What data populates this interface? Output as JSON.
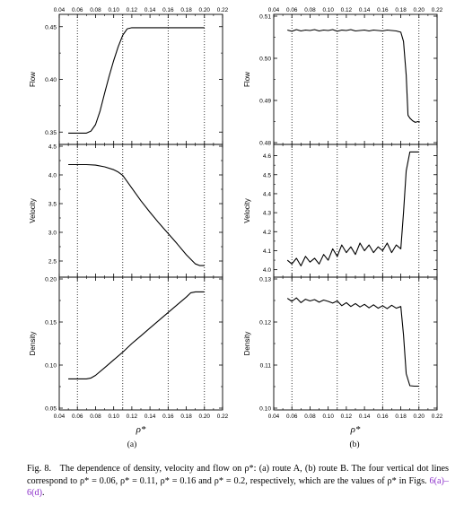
{
  "figure_label": "Fig. 8.",
  "caption_text": "The dependence of density, velocity and flow on ρ*: (a) route A, (b) route B. The four vertical dot lines correspond to ρ* = 0.06, ρ* = 0.11, ρ* = 0.16 and ρ* = 0.2, respectively, which are the values of ρ* in Figs.",
  "caption_link": "6(a)–6(d)",
  "caption_end": ".",
  "colors": {
    "line": "#000000",
    "link": "#8b2fc9"
  },
  "chart_data": [
    {
      "panel": "(a)",
      "type": "line",
      "xlabel": "ρ*",
      "xlim": [
        0.04,
        0.22
      ],
      "xticks": [
        0.04,
        0.06,
        0.08,
        0.1,
        0.12,
        0.14,
        0.16,
        0.18,
        0.2,
        0.22
      ],
      "vlines": [
        0.06,
        0.11,
        0.16,
        0.2
      ],
      "subplots": [
        {
          "ylabel": "Flow",
          "ylim": [
            0.34,
            0.46
          ],
          "yticks": [
            0.35,
            0.4,
            0.45
          ],
          "ytick_labels": [
            "0.35",
            "0.40",
            "0.45"
          ],
          "series": [
            {
              "x": [
                0.05,
                0.06,
                0.07,
                0.075,
                0.08,
                0.085,
                0.09,
                0.095,
                0.1,
                0.105,
                0.11,
                0.115,
                0.12,
                0.13,
                0.14,
                0.16,
                0.18,
                0.2
              ],
              "y": [
                0.349,
                0.349,
                0.349,
                0.351,
                0.357,
                0.37,
                0.387,
                0.403,
                0.418,
                0.431,
                0.442,
                0.448,
                0.449,
                0.449,
                0.449,
                0.449,
                0.449,
                0.449
              ]
            }
          ]
        },
        {
          "ylabel": "Velocity",
          "ylim": [
            2.25,
            4.5
          ],
          "yticks": [
            2.5,
            3.0,
            3.5,
            4.0,
            4.5
          ],
          "ytick_labels": [
            "2.5",
            "3.0",
            "3.5",
            "4.0",
            "4.5"
          ],
          "series": [
            {
              "x": [
                0.05,
                0.06,
                0.07,
                0.08,
                0.09,
                0.1,
                0.105,
                0.11,
                0.12,
                0.13,
                0.14,
                0.15,
                0.16,
                0.17,
                0.18,
                0.19,
                0.195,
                0.2
              ],
              "y": [
                4.18,
                4.18,
                4.18,
                4.17,
                4.14,
                4.09,
                4.05,
                3.99,
                3.77,
                3.55,
                3.35,
                3.16,
                2.98,
                2.8,
                2.61,
                2.45,
                2.42,
                2.42
              ]
            }
          ]
        },
        {
          "ylabel": "Density",
          "ylim": [
            0.05,
            0.2
          ],
          "yticks": [
            0.05,
            0.1,
            0.15,
            0.2
          ],
          "ytick_labels": [
            "0.05",
            "0.10",
            "0.15",
            "0.20"
          ],
          "series": [
            {
              "x": [
                0.05,
                0.06,
                0.07,
                0.075,
                0.08,
                0.09,
                0.1,
                0.11,
                0.12,
                0.13,
                0.14,
                0.15,
                0.16,
                0.17,
                0.18,
                0.185,
                0.19,
                0.2
              ],
              "y": [
                0.084,
                0.084,
                0.084,
                0.085,
                0.088,
                0.097,
                0.106,
                0.115,
                0.125,
                0.134,
                0.143,
                0.152,
                0.161,
                0.17,
                0.179,
                0.184,
                0.185,
                0.185
              ]
            }
          ]
        }
      ]
    },
    {
      "panel": "(b)",
      "type": "line",
      "xlabel": "ρ*",
      "xlim": [
        0.04,
        0.22
      ],
      "xticks": [
        0.04,
        0.06,
        0.08,
        0.1,
        0.12,
        0.14,
        0.16,
        0.18,
        0.2,
        0.22
      ],
      "vlines": [
        0.06,
        0.11,
        0.16,
        0.2
      ],
      "subplots": [
        {
          "ylabel": "Flow",
          "ylim": [
            0.48,
            0.51
          ],
          "yticks": [
            0.48,
            0.49,
            0.5,
            0.51
          ],
          "ytick_labels": [
            "0.48",
            "0.49",
            "0.50",
            "0.51"
          ],
          "series": [
            {
              "x": [
                0.055,
                0.06,
                0.065,
                0.07,
                0.075,
                0.08,
                0.085,
                0.09,
                0.095,
                0.1,
                0.105,
                0.11,
                0.115,
                0.12,
                0.125,
                0.13,
                0.135,
                0.14,
                0.145,
                0.15,
                0.155,
                0.16,
                0.165,
                0.17,
                0.175,
                0.18,
                0.183,
                0.186,
                0.188,
                0.19,
                0.193,
                0.196,
                0.199,
                0.201
              ],
              "y": [
                0.5067,
                0.5064,
                0.5068,
                0.5065,
                0.5067,
                0.5066,
                0.5068,
                0.5065,
                0.5067,
                0.5066,
                0.5068,
                0.5064,
                0.5067,
                0.5066,
                0.5068,
                0.5065,
                0.5066,
                0.5067,
                0.5065,
                0.5067,
                0.5066,
                0.5065,
                0.5067,
                0.5066,
                0.5065,
                0.5062,
                0.504,
                0.496,
                0.4865,
                0.4858,
                0.4852,
                0.4848,
                0.485,
                0.4849
              ]
            }
          ]
        },
        {
          "ylabel": "Velocity",
          "ylim": [
            3.97,
            4.65
          ],
          "yticks": [
            4.0,
            4.1,
            4.2,
            4.3,
            4.4,
            4.5,
            4.6
          ],
          "ytick_labels": [
            "4.0",
            "4.1",
            "4.2",
            "4.3",
            "4.4",
            "4.5",
            "4.6"
          ],
          "series": [
            {
              "x": [
                0.055,
                0.06,
                0.065,
                0.07,
                0.075,
                0.08,
                0.085,
                0.09,
                0.095,
                0.1,
                0.105,
                0.11,
                0.115,
                0.12,
                0.125,
                0.13,
                0.135,
                0.14,
                0.145,
                0.15,
                0.155,
                0.16,
                0.165,
                0.17,
                0.175,
                0.18,
                0.183,
                0.186,
                0.19,
                0.195,
                0.2
              ],
              "y": [
                4.05,
                4.03,
                4.06,
                4.02,
                4.07,
                4.04,
                4.06,
                4.03,
                4.08,
                4.05,
                4.11,
                4.07,
                4.13,
                4.09,
                4.12,
                4.08,
                4.14,
                4.1,
                4.13,
                4.09,
                4.12,
                4.1,
                4.14,
                4.09,
                4.13,
                4.11,
                4.3,
                4.52,
                4.62,
                4.62,
                4.62
              ]
            }
          ]
        },
        {
          "ylabel": "Density",
          "ylim": [
            0.1,
            0.13
          ],
          "yticks": [
            0.1,
            0.11,
            0.12,
            0.13
          ],
          "ytick_labels": [
            "0.10",
            "0.11",
            "0.12",
            "0.13"
          ],
          "series": [
            {
              "x": [
                0.055,
                0.06,
                0.065,
                0.07,
                0.075,
                0.08,
                0.085,
                0.09,
                0.095,
                0.1,
                0.105,
                0.11,
                0.115,
                0.12,
                0.125,
                0.13,
                0.135,
                0.14,
                0.145,
                0.15,
                0.155,
                0.16,
                0.165,
                0.17,
                0.175,
                0.18,
                0.183,
                0.186,
                0.19,
                0.195,
                0.2
              ],
              "y": [
                0.1255,
                0.1248,
                0.1256,
                0.1245,
                0.1253,
                0.1249,
                0.1252,
                0.1246,
                0.1251,
                0.1248,
                0.1244,
                0.1249,
                0.1238,
                0.1245,
                0.1236,
                0.1243,
                0.1235,
                0.1241,
                0.1233,
                0.124,
                0.1232,
                0.1238,
                0.1231,
                0.1239,
                0.1232,
                0.1236,
                0.117,
                0.108,
                0.1052,
                0.1051,
                0.1051
              ]
            }
          ]
        }
      ]
    }
  ]
}
